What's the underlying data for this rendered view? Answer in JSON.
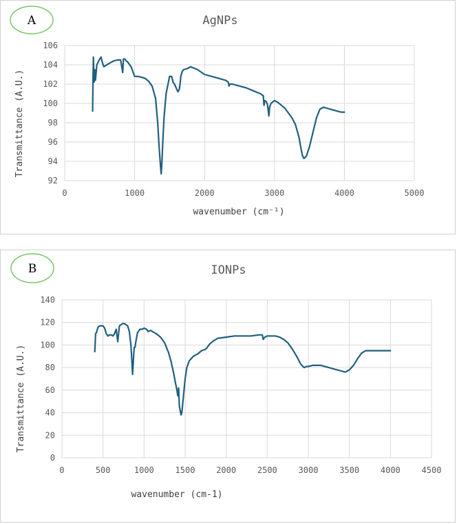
{
  "chart_data": [
    {
      "type": "line",
      "badge": "A",
      "title": "AgNPs",
      "xlabel": "wavenumber (cm⁻¹)",
      "ylabel": "Transmittance (A.U.)",
      "xlim": [
        0,
        5000
      ],
      "ylim": [
        92,
        106
      ],
      "xticks": [
        0,
        1000,
        2000,
        3000,
        4000,
        5000
      ],
      "yticks": [
        92,
        94,
        96,
        98,
        100,
        102,
        104,
        106
      ],
      "grid": true,
      "series": [
        {
          "color": "#1f5f7f",
          "x": [
            400,
            405,
            410,
            420,
            430,
            440,
            460,
            480,
            500,
            520,
            540,
            560,
            600,
            650,
            700,
            750,
            800,
            830,
            840,
            860,
            880,
            900,
            950,
            1000,
            1050,
            1100,
            1150,
            1200,
            1250,
            1300,
            1330,
            1350,
            1370,
            1380,
            1390,
            1400,
            1420,
            1450,
            1500,
            1530,
            1550,
            1570,
            1600,
            1620,
            1640,
            1650,
            1660,
            1680,
            1700,
            1750,
            1800,
            1900,
            2000,
            2100,
            2200,
            2300,
            2340,
            2350,
            2360,
            2370,
            2400,
            2500,
            2600,
            2700,
            2800,
            2840,
            2850,
            2860,
            2880,
            2900,
            2920,
            2930,
            2950,
            3000,
            3050,
            3100,
            3150,
            3200,
            3250,
            3300,
            3350,
            3380,
            3400,
            3420,
            3440,
            3460,
            3500,
            3550,
            3600,
            3650,
            3700,
            3750,
            3800,
            3850,
            3900,
            3950,
            4000
          ],
          "y": [
            99.2,
            102.5,
            104.8,
            102.2,
            103.5,
            102.4,
            104.0,
            104.3,
            104.6,
            104.8,
            104.2,
            103.8,
            104.0,
            104.2,
            104.4,
            104.5,
            104.5,
            103.2,
            104.6,
            104.6,
            104.4,
            104.3,
            103.8,
            102.8,
            102.8,
            102.7,
            102.6,
            102.3,
            101.8,
            100.5,
            98.0,
            95.5,
            93.5,
            92.7,
            93.8,
            95.5,
            98.5,
            101.0,
            102.8,
            102.8,
            102.2,
            102.0,
            101.5,
            101.2,
            101.5,
            102.0,
            102.8,
            103.3,
            103.5,
            103.6,
            103.8,
            103.5,
            103.0,
            102.8,
            102.6,
            102.4,
            102.2,
            101.8,
            102.0,
            102.0,
            102.0,
            101.8,
            101.6,
            101.3,
            101.0,
            100.8,
            99.8,
            100.3,
            100.2,
            99.9,
            98.7,
            99.6,
            100.0,
            100.3,
            100.1,
            99.8,
            99.5,
            99.0,
            98.5,
            97.8,
            96.5,
            95.3,
            94.6,
            94.3,
            94.4,
            94.6,
            95.5,
            97.0,
            98.5,
            99.4,
            99.6,
            99.5,
            99.4,
            99.3,
            99.2,
            99.1,
            99.1
          ]
        }
      ]
    },
    {
      "type": "line",
      "badge": "B",
      "title": "IONPs",
      "xlabel": "wavenumber (cm-1)",
      "ylabel": "Transmittance (A.U.)",
      "xlim": [
        0,
        4500
      ],
      "ylim": [
        0,
        140
      ],
      "xticks": [
        0,
        500,
        1000,
        1500,
        2000,
        2500,
        3000,
        3500,
        4000,
        4500
      ],
      "yticks": [
        0,
        20,
        40,
        60,
        80,
        100,
        120,
        140
      ],
      "grid": true,
      "series": [
        {
          "color": "#1f5f7f",
          "x": [
            400,
            410,
            420,
            440,
            460,
            480,
            500,
            520,
            540,
            560,
            580,
            600,
            620,
            640,
            660,
            680,
            690,
            700,
            720,
            740,
            760,
            780,
            800,
            820,
            840,
            850,
            860,
            870,
            875,
            880,
            890,
            900,
            920,
            950,
            980,
            1000,
            1030,
            1050,
            1080,
            1100,
            1150,
            1200,
            1250,
            1300,
            1330,
            1360,
            1380,
            1400,
            1410,
            1420,
            1430,
            1440,
            1450,
            1460,
            1480,
            1500,
            1520,
            1550,
            1600,
            1650,
            1700,
            1740,
            1760,
            1800,
            1850,
            1900,
            2000,
            2100,
            2200,
            2300,
            2400,
            2440,
            2450,
            2460,
            2470,
            2500,
            2550,
            2600,
            2650,
            2700,
            2750,
            2800,
            2850,
            2880,
            2900,
            2920,
            2950,
            2980,
            3000,
            3050,
            3100,
            3150,
            3200,
            3250,
            3300,
            3350,
            3400,
            3450,
            3500,
            3550,
            3600,
            3650,
            3700,
            3800,
            3900,
            4000
          ],
          "y": [
            94,
            110,
            111,
            116,
            117,
            117,
            117,
            115,
            110,
            108,
            109,
            109,
            108,
            110,
            114,
            103,
            110,
            117,
            118,
            119,
            119,
            118,
            117,
            112,
            100,
            88,
            74,
            86,
            93,
            98,
            98,
            103,
            111,
            114,
            114,
            115,
            114,
            112,
            113,
            112,
            110,
            107,
            102,
            93,
            85,
            75,
            67,
            60,
            55,
            62,
            46,
            42,
            38,
            40,
            55,
            70,
            80,
            86,
            90,
            92,
            95,
            96,
            97,
            101,
            104,
            106,
            107,
            108,
            108,
            108,
            109,
            109,
            105,
            106,
            107,
            108,
            108,
            108,
            107,
            105,
            102,
            97,
            91,
            87,
            84,
            82,
            80,
            81,
            81,
            82,
            82,
            82,
            81,
            80,
            79,
            78,
            77,
            76,
            78,
            82,
            88,
            93,
            95,
            95,
            95,
            95
          ]
        }
      ]
    }
  ]
}
